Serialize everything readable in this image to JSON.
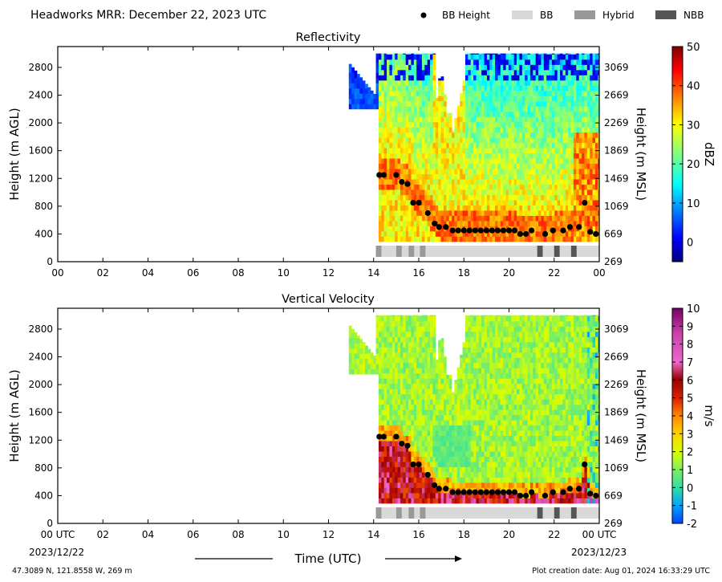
{
  "header": {
    "title": "Headworks MRR:  December 22, 2023 UTC",
    "legend": [
      {
        "label": "BB Height",
        "kind": "dot",
        "color": "#000000"
      },
      {
        "label": "BB",
        "kind": "swatch",
        "color": "#d9d9d9"
      },
      {
        "label": "Hybrid",
        "kind": "swatch",
        "color": "#999999"
      },
      {
        "label": "NBB",
        "kind": "swatch",
        "color": "#555555"
      }
    ]
  },
  "footer": {
    "location": "47.3089 N, 121.8558 W, 269 m",
    "creation": "Plot creation date: Aug 01, 2024 16:33:29 UTC",
    "xlabel": "Time (UTC)",
    "start_date": "2023/12/22",
    "end_date": "2023/12/23"
  },
  "chart_data": [
    {
      "type": "heatmap",
      "title": "Reflectivity",
      "xlabel": "",
      "ylabel": "Height (m AGL)",
      "ylabel_right": "Height (m MSL)",
      "xlim": [
        0,
        24
      ],
      "ylim": [
        0,
        3100
      ],
      "x_ticks": [
        "00",
        "02",
        "04",
        "06",
        "08",
        "10",
        "12",
        "14",
        "16",
        "18",
        "20",
        "22",
        "00"
      ],
      "y_ticks": [
        0,
        400,
        800,
        1200,
        1600,
        2000,
        2400,
        2800
      ],
      "y_ticks_right": [
        269,
        669,
        1069,
        1469,
        1869,
        2269,
        2669,
        3069
      ],
      "colorbar": {
        "label": "dBZ",
        "min": -5,
        "max": 50,
        "ticks": [
          0,
          10,
          20,
          30,
          40,
          50
        ],
        "colormap": "jet"
      },
      "grid": false
    },
    {
      "type": "heatmap",
      "title": "Vertical Velocity",
      "xlabel": "Time (UTC)",
      "ylabel": "Height (m AGL)",
      "ylabel_right": "Height (m MSL)",
      "xlim": [
        0,
        24
      ],
      "ylim": [
        0,
        3100
      ],
      "x_ticks": [
        "00 UTC",
        "02",
        "04",
        "06",
        "08",
        "10",
        "12",
        "14",
        "16",
        "18",
        "20",
        "22",
        "00 UTC"
      ],
      "y_ticks": [
        0,
        400,
        800,
        1200,
        1600,
        2000,
        2400,
        2800
      ],
      "y_ticks_right": [
        269,
        669,
        1069,
        1469,
        1869,
        2269,
        2669,
        3069
      ],
      "colorbar": {
        "label": "m/s",
        "min": -2,
        "max": 10,
        "ticks": [
          -2,
          -1,
          0,
          1,
          2,
          3,
          4,
          5,
          6,
          7,
          8,
          9,
          10
        ],
        "colormap": "velocity"
      },
      "grid": false
    }
  ],
  "bb_height": {
    "times": [
      14.25,
      14.45,
      15.0,
      15.25,
      15.5,
      15.75,
      16.0,
      16.4,
      16.7,
      16.9,
      17.2,
      17.5,
      17.75,
      18.0,
      18.25,
      18.5,
      18.75,
      19.0,
      19.25,
      19.5,
      19.75,
      20.0,
      20.25,
      20.5,
      20.75,
      21.0,
      21.6,
      21.95,
      22.4,
      22.7,
      23.1,
      23.35,
      23.6,
      23.85
    ],
    "heights": [
      1250,
      1250,
      1250,
      1150,
      1120,
      850,
      850,
      700,
      550,
      500,
      500,
      450,
      450,
      450,
      450,
      450,
      450,
      450,
      450,
      450,
      450,
      450,
      450,
      400,
      400,
      450,
      400,
      450,
      450,
      500,
      500,
      850,
      430,
      400
    ]
  },
  "bb_classification": [
    {
      "start": 14.1,
      "end": 14.35,
      "class": "Hybrid"
    },
    {
      "start": 14.35,
      "end": 15.0,
      "class": "BB"
    },
    {
      "start": 15.0,
      "end": 15.25,
      "class": "Hybrid"
    },
    {
      "start": 15.25,
      "end": 15.55,
      "class": "BB"
    },
    {
      "start": 15.55,
      "end": 15.8,
      "class": "Hybrid"
    },
    {
      "start": 15.8,
      "end": 16.05,
      "class": "BB"
    },
    {
      "start": 16.05,
      "end": 16.3,
      "class": "Hybrid"
    },
    {
      "start": 16.3,
      "end": 21.25,
      "class": "BB"
    },
    {
      "start": 21.25,
      "end": 21.5,
      "class": "NBB"
    },
    {
      "start": 21.5,
      "end": 22.0,
      "class": "BB"
    },
    {
      "start": 22.0,
      "end": 22.25,
      "class": "NBB"
    },
    {
      "start": 22.25,
      "end": 22.75,
      "class": "BB"
    },
    {
      "start": 22.75,
      "end": 23.0,
      "class": "NBB"
    },
    {
      "start": 23.0,
      "end": 24.0,
      "class": "BB"
    }
  ]
}
